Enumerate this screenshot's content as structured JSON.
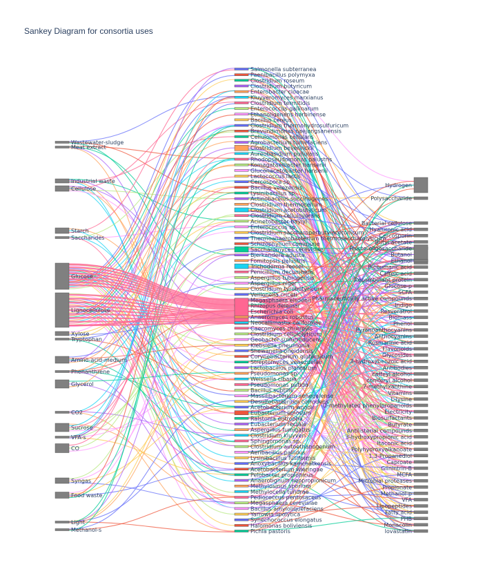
{
  "title": "Sankey Diagram for consortia uses",
  "colors": {
    "node_fill": "#808080",
    "text": "#2a3f5f",
    "palette": [
      "#636efa",
      "#EF553B",
      "#00cc96",
      "#ab63fa",
      "#FFA15A",
      "#19d3f3",
      "#FF6692",
      "#B6E880",
      "#FF97FF",
      "#FECB52"
    ]
  },
  "left_nodes": [
    "Wastewater-sludge",
    "Meat extract",
    "Industrial waste",
    "Cellulose",
    "Starch",
    "Saccharides",
    "Glucose",
    "Lignocellulose",
    "Xylose",
    "Tryptophan",
    "Amino-acid-medium",
    "Phenanthrene",
    "Glycerol",
    "CO2",
    "Sucrose",
    "VFA-s",
    "CO",
    "Syngas",
    "Food waste",
    "Light",
    "Methanol-s"
  ],
  "middle_nodes": [
    "Salmonella subterranea",
    "Paenibacillus polymyxa",
    "Clostridium roseum",
    "Clostridium butyricum",
    "Enterobacter cloacae",
    "Kluyveromyces marxianus",
    "Clostridium termitidis",
    "Enterococcus gallinarum",
    "Ethanoligenens harbinense",
    "Bacillus cereus",
    "Clostridium thermohydrosulfuricum",
    "Brevundimonas naejangsanensis",
    "Cellulomonas cellulans",
    "Agrobacterium tumefaciens",
    "Clostridium beijerinckii",
    "Aureobasidium pullulans",
    "Rhodopseudomonas palustris",
    "Komagataeibacter hansenii",
    "Gluconacetobacter hansenii",
    "Lactococcus lactis",
    "Cercospora sp.",
    "Bacillus velezensis",
    "Lysinibacillus sp.",
    "Actinobacillus succinogenes",
    "Clostridium thermocellum",
    "Clostridium acetobutylicum",
    "Clostridium cellulovorans",
    "Acinetobacter baylyi",
    "Enterococcus sp.",
    "Clostridium saccharoperbutylacetonicum",
    "Thermoanaerobacterium thermosaccharolyticum",
    "Schizophyllum commune",
    "Saccharomyces cerevisiae",
    "Bjerkandera adusta",
    "Fomitopsis palustris",
    "Trichoderma reesei",
    "Penicillium decumbens",
    "Aspergillus tubingensis",
    "Aspergillus niger",
    "Clostridium tyrobutyricum",
    "Veillonella criceti",
    "Megasphaera elsdenii",
    "Rhizopus delemar",
    "Escherichia coli",
    "Anaeromyces robustus",
    "Neocallimastix californiae",
    "Caecomyces churrovis",
    "Clostridium cellulolyticum",
    "Geobacter sulfurreducens",
    "Klebsiella pneumonia",
    "Shewanella oneidensis",
    "Corynebacterium glutamicum",
    "Streptomyces venezuelae",
    "Lactobacillus plantarum",
    "Pseudomonas sp.",
    "Weissella cibaria",
    "Pseudomonas putida",
    "Bacillus subtilis",
    "Massilibacterium senegalense",
    "Desulfobacterium corrodens",
    "Acetobacterium woodii",
    "Eubacterium limosum",
    "Ralstonia eutropha",
    "Eubacterium rectale",
    "Aspergillus fumigatus",
    "Clostridium kluyveri",
    "Sphingomonas sp.",
    "Clostridium autoethanogenum",
    "Aeribacillus pallidus",
    "Lysinibacillus fusiformis",
    "Anoxybacillus kamchatkensis",
    "Acetobacterium wieringae",
    "Pelobacter propionicus",
    "Anaerotignum neopropionicum",
    "Methylosinus sporium",
    "Methylocella tundrae",
    "Pediococcus pentosaceus",
    "Megasphaera cerevisiae",
    "Bacillus amyloliquefaciens",
    "Yarrowia lipolytica",
    "Synechococcus elongatus",
    "Halomonas boliviensis",
    "Pichia pastoris"
  ],
  "right_nodes": [
    "Hydrogen",
    "Polysaccharide",
    "Bacterial cellulose",
    "Hyaluronic acid",
    "Cercosporin",
    "Butyl acetate",
    "Fructo-oligosaccharide",
    "Butanol",
    "Ethanol",
    "P-coumaric acid",
    "Caffeic acid",
    "Recombinant protein",
    "Glucose-p",
    "SCFA",
    "Pharmaceutically active compounds",
    "Indigo",
    "Resveratrol",
    "Biomass",
    "Phenol",
    "Pyranoanthocyanins",
    "Anthocyanins",
    "Rosmarinic acid",
    "Flavonoids",
    "Glycosides",
    "3-hydroxybenzoic acid",
    "Antibodies",
    "caffeyl alcohol",
    "coniferyl alcohol",
    "7-methylxanthine",
    "Vitamins",
    "L-lysine",
    "O-methylated phenylpropanoids",
    "Electricity",
    "Biosurfactants",
    "Butyrate",
    "Antilisterial compounds",
    "3-hydroxypropionic acid",
    "Itaconic acid",
    "Polyhydroxyalkanoate",
    "1,3-Propanediol",
    "Caproate",
    "Glinintrin-B",
    "MCFA",
    "Microbial proteases",
    "Propionate",
    "Methanol-p",
    "VFA",
    "Lipopeptides",
    "Fatty acid",
    "PHB",
    "Monacolin",
    "lovastatin"
  ]
}
